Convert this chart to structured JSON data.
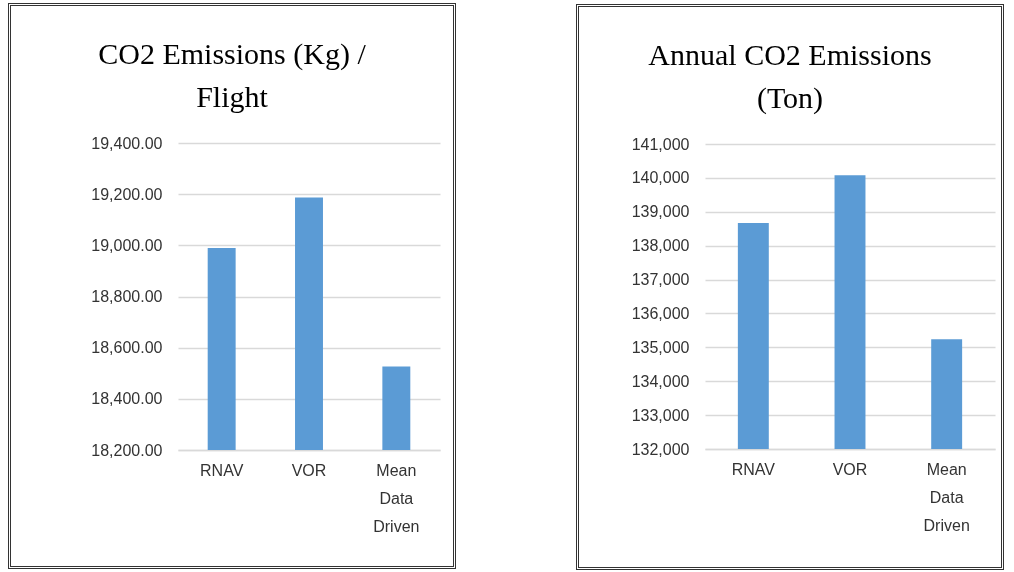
{
  "chart_data": [
    {
      "type": "bar",
      "title": "CO2 Emissions (Kg) / Flight",
      "categories": [
        "RNAV",
        "VOR",
        "Mean Data Driven"
      ],
      "values": [
        18990,
        19187,
        18526
      ],
      "color": "#5b9bd5",
      "ylim": [
        18200,
        19400
      ],
      "yticks": [
        {
          "value": 18200,
          "label": "18,200.00"
        },
        {
          "value": 18400,
          "label": "18,400.00"
        },
        {
          "value": 18600,
          "label": "18,600.00"
        },
        {
          "value": 18800,
          "label": "18,800.00"
        },
        {
          "value": 19000,
          "label": "19,000.00"
        },
        {
          "value": 19200,
          "label": "19,200.00"
        },
        {
          "value": 19400,
          "label": "19,400.00"
        }
      ],
      "grid": "y"
    },
    {
      "type": "bar",
      "title": "Annual CO2 Emissions (Ton)",
      "categories": [
        "RNAV",
        "VOR",
        "Mean Data Driven"
      ],
      "values": [
        138670,
        140080,
        135240
      ],
      "color": "#5b9bd5",
      "ylim": [
        132000,
        141000
      ],
      "yticks": [
        {
          "value": 132000,
          "label": "132,000"
        },
        {
          "value": 133000,
          "label": "133,000"
        },
        {
          "value": 134000,
          "label": "134,000"
        },
        {
          "value": 135000,
          "label": "135,000"
        },
        {
          "value": 136000,
          "label": "136,000"
        },
        {
          "value": 137000,
          "label": "137,000"
        },
        {
          "value": 138000,
          "label": "138,000"
        },
        {
          "value": 139000,
          "label": "139,000"
        },
        {
          "value": 140000,
          "label": "140,000"
        },
        {
          "value": 141000,
          "label": "141,000"
        }
      ],
      "grid": "y"
    }
  ]
}
